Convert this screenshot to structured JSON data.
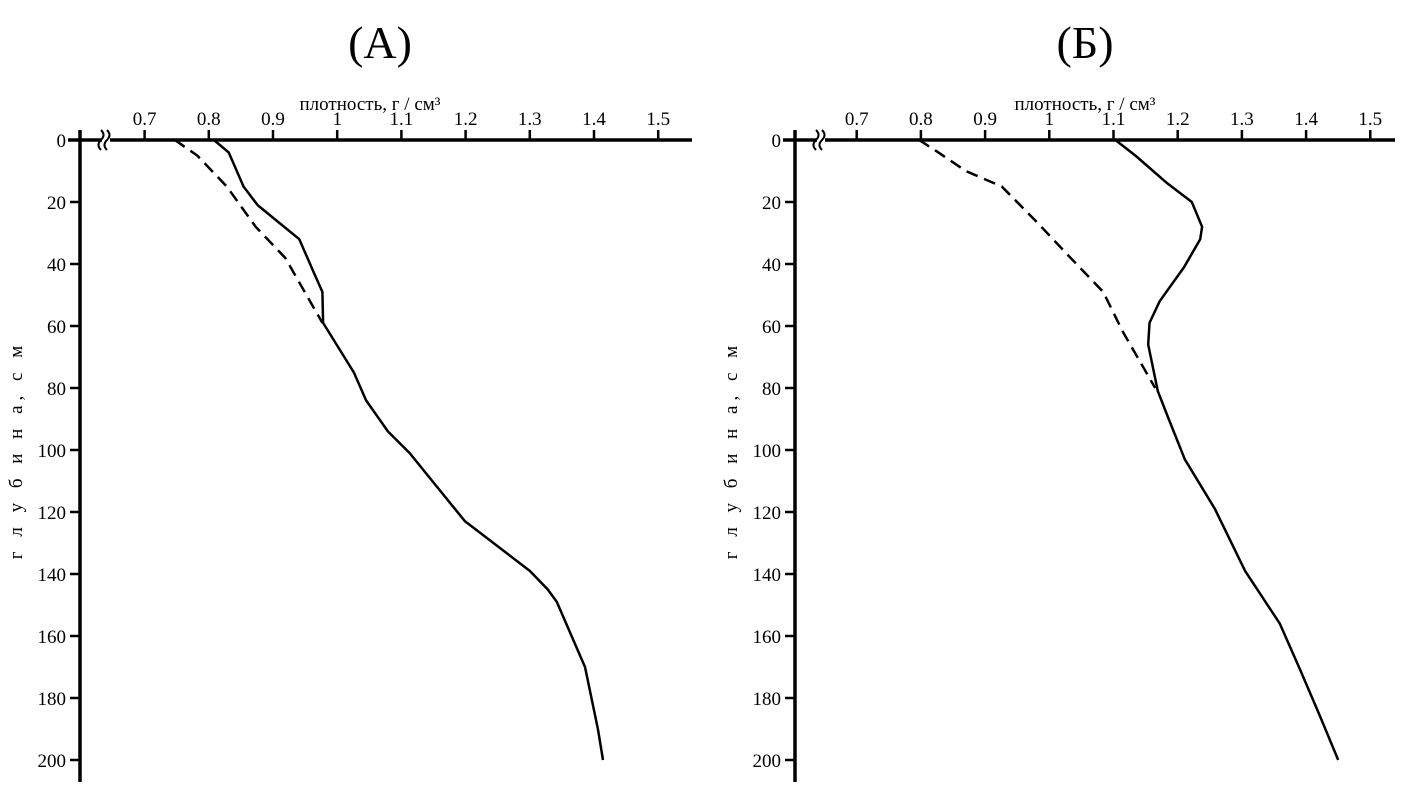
{
  "chart_data": [
    {
      "type": "line",
      "title": "(А)",
      "xlabel": "плотность,  г /  см³",
      "ylabel": "г л у б и н а, с м",
      "xlim": [
        0.62,
        1.55
      ],
      "ylim": [
        200,
        0
      ],
      "xticks": [
        "0.7",
        "0.8",
        "0.9",
        "1",
        "1.1",
        "1.2",
        "1.3",
        "1.4",
        "1.5"
      ],
      "yticks": [
        "0",
        "20",
        "40",
        "60",
        "80",
        "100",
        "120",
        "140",
        "160",
        "180",
        "200"
      ],
      "x_axis_break": true,
      "grid": false,
      "series": [
        {
          "name": "solid",
          "style": "solid",
          "points": [
            [
              0.808,
              0
            ],
            [
              0.831,
              4
            ],
            [
              0.854,
              15
            ],
            [
              0.876,
              21
            ],
            [
              0.941,
              32
            ],
            [
              0.964,
              43
            ],
            [
              0.977,
              49
            ],
            [
              0.978,
              59
            ],
            [
              1.026,
              75
            ],
            [
              1.045,
              84
            ],
            [
              1.079,
              94
            ],
            [
              1.113,
              101
            ],
            [
              1.152,
              111
            ],
            [
              1.199,
              123
            ],
            [
              1.3,
              139
            ],
            [
              1.328,
              145
            ],
            [
              1.342,
              149
            ],
            [
              1.386,
              170
            ],
            [
              1.406,
              190
            ],
            [
              1.414,
              200
            ]
          ]
        },
        {
          "name": "dashed",
          "style": "dashed",
          "points": [
            [
              0.747,
              0
            ],
            [
              0.782,
              5
            ],
            [
              0.828,
              15
            ],
            [
              0.873,
              28
            ],
            [
              0.919,
              38
            ],
            [
              0.977,
              59
            ]
          ]
        }
      ]
    },
    {
      "type": "line",
      "title": "(Б)",
      "xlabel": "плотность,  г /  см³",
      "ylabel": "г л у б и н а, с м",
      "xlim": [
        0.62,
        1.56
      ],
      "ylim": [
        200,
        0
      ],
      "xticks": [
        "0.7",
        "0.8",
        "0.9",
        "1",
        "1.1",
        "1.2",
        "1.3",
        "1.4",
        "1.5"
      ],
      "yticks": [
        "0",
        "20",
        "40",
        "60",
        "80",
        "100",
        "120",
        "140",
        "160",
        "180",
        "200"
      ],
      "x_axis_break": true,
      "grid": false,
      "series": [
        {
          "name": "solid",
          "style": "solid",
          "points": [
            [
              1.103,
              0
            ],
            [
              1.134,
              5
            ],
            [
              1.184,
              14
            ],
            [
              1.222,
              20
            ],
            [
              1.238,
              28
            ],
            [
              1.235,
              32
            ],
            [
              1.21,
              41
            ],
            [
              1.172,
              52
            ],
            [
              1.156,
              59
            ],
            [
              1.154,
              66
            ],
            [
              1.169,
              81
            ],
            [
              1.186,
              90
            ],
            [
              1.211,
              103
            ],
            [
              1.258,
              119
            ],
            [
              1.305,
              139
            ],
            [
              1.359,
              156
            ],
            [
              1.391,
              171
            ],
            [
              1.422,
              186
            ],
            [
              1.45,
              200
            ]
          ]
        },
        {
          "name": "dashed",
          "style": "dashed",
          "points": [
            [
              0.797,
              0
            ],
            [
              0.82,
              3
            ],
            [
              0.87,
              10
            ],
            [
              0.926,
              15
            ],
            [
              0.983,
              27
            ],
            [
              1.033,
              38
            ],
            [
              1.084,
              49
            ],
            [
              1.115,
              62
            ],
            [
              1.165,
              80
            ]
          ]
        }
      ]
    }
  ]
}
